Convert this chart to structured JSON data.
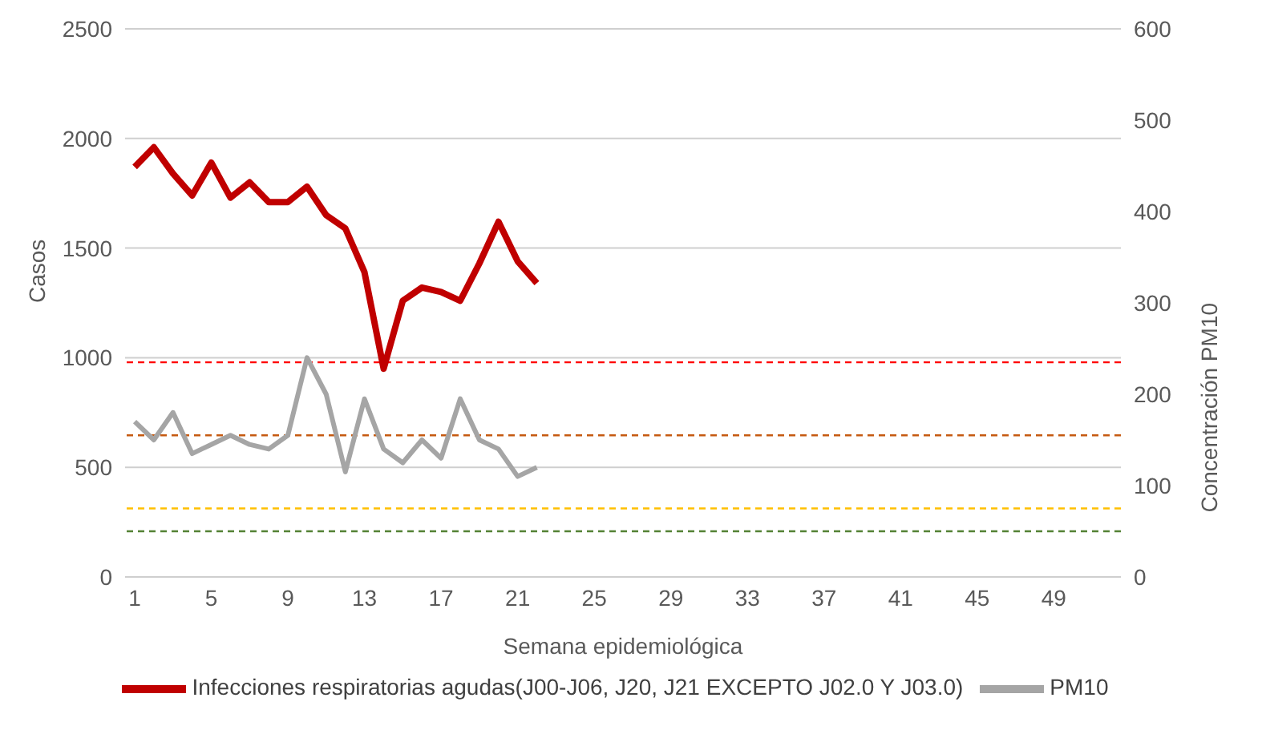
{
  "chart_data": {
    "type": "line",
    "xlabel": "Semana epidemiológica",
    "ylabel": "Casos",
    "y2label": "Concentración PM10",
    "categories": [
      "1",
      null,
      null,
      null,
      "5",
      null,
      null,
      null,
      "9",
      null,
      null,
      null,
      "13",
      null,
      null,
      null,
      "17",
      null,
      null,
      null,
      "21",
      null,
      null,
      null,
      "25",
      null,
      null,
      null,
      "29",
      null,
      null,
      null,
      "33",
      null,
      null,
      null,
      "37",
      null,
      null,
      null,
      "41",
      null,
      null,
      null,
      "45",
      null,
      null,
      null,
      "49",
      null,
      null,
      null
    ],
    "series": [
      {
        "name": "Infecciones respiratorias agudas(J00-J06, J20, J21 EXCEPTO J02.0 Y J03.0)",
        "color": "#c00000",
        "values": [
          1870,
          1960,
          1840,
          1740,
          1890,
          1730,
          1800,
          1710,
          1710,
          1780,
          1650,
          1590,
          1390,
          950,
          1260,
          1320,
          1300,
          1260,
          1430,
          1620,
          1440,
          1340,
          null,
          null,
          null,
          null,
          null,
          null,
          null,
          null,
          null,
          null,
          null,
          null,
          null,
          null,
          null,
          null,
          null,
          null,
          null,
          null,
          null,
          null,
          null,
          null,
          null,
          null,
          null,
          null,
          null,
          null
        ]
      },
      {
        "name": "PM10",
        "color": "#a5a5a5",
        "axis": "y2",
        "values": [
          170,
          150,
          180,
          135,
          145,
          155,
          145,
          140,
          155,
          240,
          200,
          115,
          195,
          140,
          125,
          150,
          130,
          195,
          150,
          140,
          110,
          120,
          null,
          null,
          null,
          null,
          null,
          null,
          null,
          null,
          null,
          null,
          null,
          null,
          null,
          null,
          null,
          null,
          null,
          null,
          null,
          null,
          null,
          null,
          null,
          null,
          null,
          null,
          null,
          null,
          null,
          null
        ]
      }
    ],
    "ylim": [
      0,
      2500
    ],
    "yticks": [
      0,
      500,
      1000,
      1500,
      2000,
      2500
    ],
    "y2lim": [
      0,
      600
    ],
    "y2ticks": [
      0,
      100,
      200,
      300,
      400,
      500,
      600
    ],
    "ref_lines": [
      {
        "axis": "y2",
        "value": 235,
        "color": "#ff0000",
        "line_style": "dashed"
      },
      {
        "axis": "y2",
        "value": 155,
        "color": "#c55a11",
        "line_style": "dashed"
      },
      {
        "axis": "y2",
        "value": 75,
        "color": "#ffc000",
        "line_style": "dashed"
      },
      {
        "axis": "y2",
        "value": 50,
        "color": "#548235",
        "line_style": "dashed"
      }
    ],
    "grid": "y",
    "legend": "bottom",
    "marker": "none",
    "line_style": "solid"
  }
}
